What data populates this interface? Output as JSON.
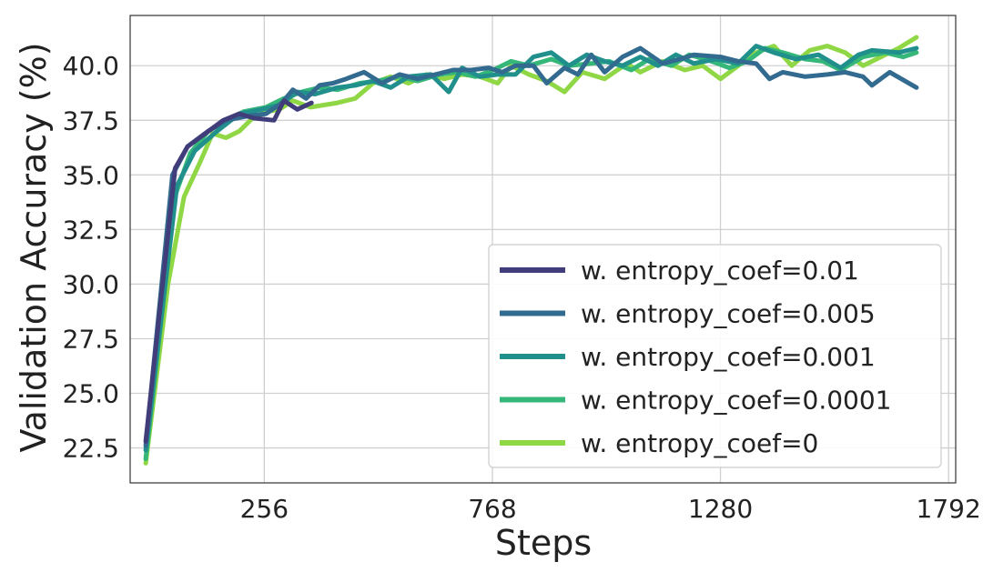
{
  "chart_data": {
    "type": "line",
    "title": "",
    "xlabel": "Steps",
    "ylabel": "Validation Accuracy (%)",
    "xlim": [
      -45,
      1808
    ],
    "ylim": [
      20.9,
      42.3
    ],
    "xticks": [
      256,
      768,
      1280,
      1792
    ],
    "yticks": [
      22.5,
      25.0,
      27.5,
      30.0,
      32.5,
      35.0,
      37.5,
      40.0
    ],
    "ytick_labels": [
      "22.5",
      "25.0",
      "27.5",
      "30.0",
      "32.5",
      "35.0",
      "37.5",
      "40.0"
    ],
    "xtick_labels": [
      "256",
      "768",
      "1280",
      "1792"
    ],
    "grid": true,
    "legend_position": "bottom-right",
    "series": [
      {
        "name": "w. entropy_coef=0.01",
        "color": "#413d7b",
        "x": [
          -10,
          56,
          84,
          104,
          124,
          164,
          200,
          232,
          278,
          300,
          330,
          362
        ],
        "y": [
          22.8,
          35.3,
          36.3,
          36.6,
          36.9,
          37.5,
          37.8,
          37.6,
          37.5,
          38.4,
          38.0,
          38.3
        ]
      },
      {
        "name": "w. entropy_coef=0.005",
        "color": "#326b8f",
        "x": [
          -10,
          50,
          84,
          130,
          170,
          220,
          260,
          296,
          320,
          350,
          380,
          410,
          440,
          480,
          520,
          560,
          600,
          640,
          680,
          720,
          760,
          790,
          820,
          860,
          890,
          930,
          960,
          990,
          1020,
          1060,
          1100,
          1150,
          1190,
          1220,
          1280,
          1320,
          1360,
          1390,
          1420,
          1470,
          1520,
          1560,
          1600,
          1620,
          1660,
          1720
        ],
        "y": [
          22.6,
          35.0,
          36.3,
          37.0,
          37.5,
          37.7,
          37.8,
          38.3,
          38.9,
          38.5,
          39.1,
          39.2,
          39.4,
          39.7,
          39.2,
          39.6,
          39.4,
          39.6,
          39.8,
          39.8,
          39.9,
          39.7,
          40.0,
          40.0,
          39.2,
          39.9,
          39.6,
          40.5,
          39.7,
          40.4,
          40.8,
          40.1,
          40.3,
          40.5,
          40.4,
          40.2,
          40.1,
          39.4,
          39.7,
          39.5,
          39.6,
          39.7,
          39.5,
          39.1,
          39.7,
          39.0
        ]
      },
      {
        "name": "w. entropy_coef=0.001",
        "color": "#21908d",
        "x": [
          -10,
          60,
          100,
          150,
          200,
          250,
          290,
          330,
          370,
          420,
          460,
          500,
          540,
          580,
          630,
          670,
          700,
          740,
          780,
          820,
          860,
          900,
          940,
          980,
          1020,
          1060,
          1100,
          1140,
          1180,
          1220,
          1270,
          1320,
          1360,
          1400,
          1450,
          1500,
          1550,
          1590,
          1620,
          1680,
          1720
        ],
        "y": [
          22.4,
          34.5,
          36.1,
          37.0,
          37.8,
          38.0,
          38.2,
          38.8,
          38.7,
          39.0,
          39.1,
          39.3,
          39.0,
          39.5,
          39.6,
          38.8,
          39.9,
          39.5,
          39.6,
          39.6,
          40.4,
          40.6,
          40.0,
          40.5,
          40.2,
          40.0,
          40.4,
          40.0,
          40.5,
          40.1,
          40.3,
          40.1,
          40.9,
          40.6,
          40.3,
          40.5,
          39.9,
          40.5,
          40.7,
          40.6,
          40.8
        ]
      },
      {
        "name": "w. entropy_coef=0.0001",
        "color": "#35b779",
        "x": [
          -10,
          55,
          90,
          130,
          170,
          210,
          260,
          300,
          340,
          380,
          420,
          470,
          510,
          560,
          600,
          650,
          690,
          730,
          770,
          810,
          850,
          900,
          940,
          990,
          1030,
          1080,
          1120,
          1170,
          1210,
          1260,
          1300,
          1340,
          1380,
          1420,
          1470,
          1510,
          1550,
          1600,
          1650,
          1690,
          1720
        ],
        "y": [
          22.0,
          34.0,
          36.0,
          37.0,
          37.5,
          37.9,
          38.1,
          38.5,
          38.8,
          39.0,
          38.9,
          39.2,
          39.3,
          39.5,
          39.3,
          39.6,
          39.7,
          39.5,
          39.8,
          40.2,
          40.0,
          40.3,
          40.0,
          40.1,
          40.2,
          39.8,
          40.3,
          40.0,
          40.5,
          40.2,
          39.9,
          40.2,
          40.8,
          40.6,
          40.3,
          40.2,
          39.8,
          40.4,
          40.6,
          40.4,
          40.6
        ]
      },
      {
        "name": "w. entropy_coef=0",
        "color": "#8fd744",
        "x": [
          -10,
          40,
          76,
          110,
          140,
          170,
          200,
          230,
          262,
          290,
          320,
          360,
          390,
          420,
          460,
          500,
          540,
          580,
          620,
          660,
          700,
          740,
          780,
          810,
          850,
          890,
          930,
          970,
          1020,
          1070,
          1100,
          1150,
          1200,
          1240,
          1280,
          1320,
          1360,
          1400,
          1440,
          1480,
          1520,
          1560,
          1600,
          1640,
          1680,
          1720
        ],
        "y": [
          21.8,
          30.0,
          34.0,
          35.5,
          36.9,
          36.7,
          37.0,
          37.6,
          37.9,
          38.0,
          38.4,
          38.1,
          38.2,
          38.3,
          38.5,
          39.2,
          39.5,
          39.2,
          39.6,
          39.4,
          39.6,
          39.5,
          39.2,
          40.0,
          39.6,
          39.3,
          38.8,
          39.7,
          39.4,
          40.1,
          39.7,
          40.2,
          39.8,
          40.0,
          39.4,
          40.0,
          40.6,
          40.9,
          40.0,
          40.7,
          40.9,
          40.6,
          40.0,
          40.4,
          40.8,
          41.3
        ]
      }
    ]
  }
}
